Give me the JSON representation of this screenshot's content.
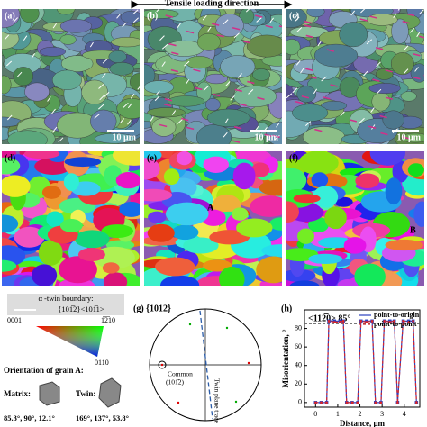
{
  "header": {
    "title": "Tensile loading direction"
  },
  "panels": [
    {
      "label": "(a)",
      "scale": "10 μm"
    },
    {
      "label": "(b)",
      "scale": "10 μm"
    },
    {
      "label": "(c)",
      "scale": "10 μm"
    },
    {
      "label": "(d)"
    },
    {
      "label": "(e)",
      "marker": "A"
    },
    {
      "label": "(f)",
      "marker": "B"
    }
  ],
  "legend": {
    "twin_boundary": "α -twin boundary:",
    "twin_system": "{101̅2}<101̅1>",
    "ipf_labels": [
      "0001",
      "1̅2̅10",
      "011̅0"
    ],
    "orientation_title": "Orientation of grain A:",
    "matrix": "Matrix:",
    "twin": "Twin:",
    "matrix_angles": "85.3°, 90°, 12.1°",
    "twin_angles": "169°, 137°, 53.8°"
  },
  "pole_figure": {
    "label": "(g)",
    "plane": "{101̅2}",
    "common": "Common",
    "common_plane": "(101̅2)",
    "trace": "Twin plane trace"
  },
  "chart_data": {
    "type": "line",
    "label": "(h)",
    "title": "<112̅0> 85°",
    "x_label": "Distance, μm",
    "y_label": "Misorientation, °",
    "xlim": [
      -0.5,
      4.7
    ],
    "xticks": [
      0,
      1,
      2,
      3,
      4
    ],
    "ylim": [
      -5,
      100
    ],
    "yticks": [
      0,
      20,
      40,
      60,
      80
    ],
    "reference_line": 85,
    "x": [
      0,
      0.25,
      0.5,
      0.6,
      0.85,
      1.1,
      1.25,
      1.4,
      1.65,
      1.9,
      2.05,
      2.3,
      2.55,
      2.7,
      2.95,
      3.1,
      3.35,
      3.55,
      3.7,
      3.95,
      4.2,
      4.4,
      4.55
    ],
    "series": [
      {
        "name": "point-to-origin",
        "color": "#2a3fbf",
        "values": [
          0,
          0,
          0,
          88,
          88,
          88,
          88,
          0,
          0,
          0,
          88,
          88,
          88,
          0,
          0,
          88,
          88,
          88,
          0,
          88,
          88,
          88,
          0
        ]
      },
      {
        "name": "point-to-point",
        "color": "#d8262b",
        "values": [
          0,
          0,
          0,
          88,
          87,
          87,
          88,
          0,
          0,
          0,
          88,
          87,
          88,
          0,
          0,
          88,
          87,
          88,
          0,
          88,
          87,
          88,
          0
        ]
      }
    ],
    "legend": "upper right"
  }
}
